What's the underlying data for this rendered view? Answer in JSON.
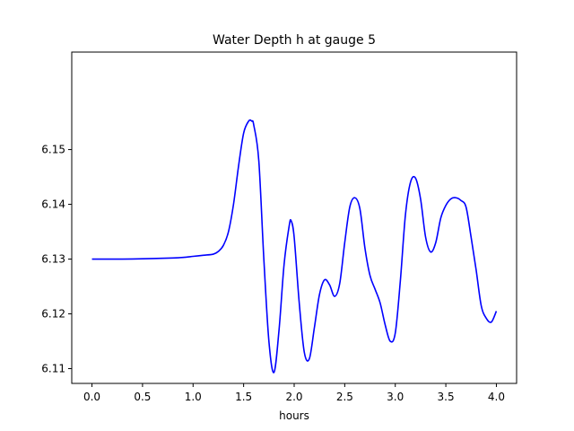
{
  "chart_data": {
    "type": "line",
    "title": "Water Depth h at gauge 5",
    "xlabel": "hours",
    "ylabel": "",
    "xlim": [
      -0.2,
      4.2
    ],
    "ylim": [
      6.1073,
      6.1678
    ],
    "grid": false,
    "x_ticks": [
      0.0,
      0.5,
      1.0,
      1.5,
      2.0,
      2.5,
      3.0,
      3.5,
      4.0
    ],
    "x_tick_labels": [
      "0.0",
      "0.5",
      "1.0",
      "1.5",
      "2.0",
      "2.5",
      "3.0",
      "3.5",
      "4.0"
    ],
    "y_ticks": [
      6.11,
      6.12,
      6.13,
      6.14,
      6.15
    ],
    "y_tick_labels": [
      "6.11",
      "6.12",
      "6.13",
      "6.14",
      "6.15"
    ],
    "series": [
      {
        "color": "#0000ff",
        "x": [
          0.0,
          0.3,
          0.6,
          0.8,
          0.9,
          1.0,
          1.1,
          1.2,
          1.25,
          1.3,
          1.35,
          1.4,
          1.45,
          1.5,
          1.55,
          1.58,
          1.6,
          1.65,
          1.7,
          1.75,
          1.8,
          1.85,
          1.9,
          1.95,
          1.97,
          2.0,
          2.05,
          2.1,
          2.15,
          2.2,
          2.25,
          2.3,
          2.35,
          2.4,
          2.45,
          2.5,
          2.55,
          2.6,
          2.65,
          2.7,
          2.75,
          2.8,
          2.85,
          2.9,
          2.95,
          3.0,
          3.05,
          3.1,
          3.15,
          3.2,
          3.25,
          3.3,
          3.35,
          3.4,
          3.45,
          3.5,
          3.55,
          3.6,
          3.65,
          3.7,
          3.75,
          3.8,
          3.85,
          3.9,
          3.95,
          4.0
        ],
        "y": [
          6.13,
          6.13,
          6.1301,
          6.1302,
          6.1303,
          6.1305,
          6.1307,
          6.1309,
          6.1314,
          6.1325,
          6.135,
          6.14,
          6.147,
          6.153,
          6.1552,
          6.1552,
          6.1545,
          6.148,
          6.13,
          6.115,
          6.1093,
          6.117,
          6.129,
          6.136,
          6.137,
          6.134,
          6.122,
          6.113,
          6.1118,
          6.1175,
          6.1235,
          6.1262,
          6.1253,
          6.1232,
          6.1255,
          6.133,
          6.1395,
          6.1412,
          6.1392,
          6.132,
          6.127,
          6.1245,
          6.122,
          6.118,
          6.115,
          6.1165,
          6.126,
          6.138,
          6.144,
          6.1448,
          6.141,
          6.134,
          6.1313,
          6.133,
          6.1375,
          6.1398,
          6.141,
          6.1412,
          6.1407,
          6.1395,
          6.134,
          6.128,
          6.1215,
          6.1192,
          6.1185,
          6.1205
        ]
      }
    ]
  }
}
